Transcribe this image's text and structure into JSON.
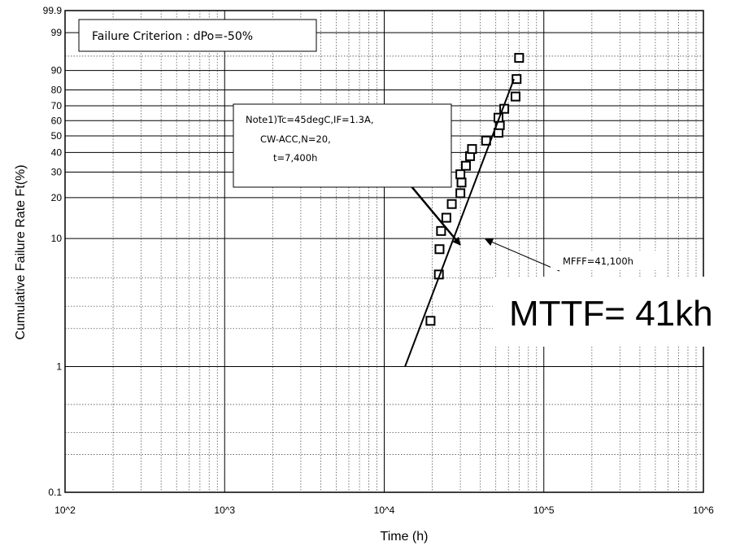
{
  "chart_data": {
    "type": "scatter",
    "title": "",
    "xlabel": "Time (h)",
    "ylabel": "Cumulative Failure Rate Ft(%)",
    "x_scale": "log",
    "y_scale": "weibull",
    "xlim": [
      100,
      1000000
    ],
    "ylim": [
      0.1,
      99.9
    ],
    "x_ticks": [
      {
        "value": 100,
        "label": "10^2"
      },
      {
        "value": 1000,
        "label": "10^3"
      },
      {
        "value": 10000,
        "label": "10^4"
      },
      {
        "value": 100000,
        "label": "10^5"
      },
      {
        "value": 1000000,
        "label": "10^6"
      }
    ],
    "y_ticks": [
      {
        "value": 0.1,
        "label": "0.1"
      },
      {
        "value": 1,
        "label": "1"
      },
      {
        "value": 10,
        "label": "10"
      },
      {
        "value": 20,
        "label": "20"
      },
      {
        "value": 30,
        "label": "30"
      },
      {
        "value": 40,
        "label": "40"
      },
      {
        "value": 50,
        "label": "50"
      },
      {
        "value": 60,
        "label": "60"
      },
      {
        "value": 70,
        "label": "70"
      },
      {
        "value": 80,
        "label": "80"
      },
      {
        "value": 90,
        "label": "90"
      },
      {
        "value": 99,
        "label": "99"
      },
      {
        "value": 99.9,
        "label": "99.9"
      }
    ],
    "grid": true,
    "series": [
      {
        "marker": "open-square",
        "points": [
          {
            "x": 19500,
            "y": 2.3
          },
          {
            "x": 22000,
            "y": 5.3
          },
          {
            "x": 22200,
            "y": 8.3
          },
          {
            "x": 22700,
            "y": 11.4
          },
          {
            "x": 24500,
            "y": 14.3
          },
          {
            "x": 26500,
            "y": 18
          },
          {
            "x": 30000,
            "y": 21.5
          },
          {
            "x": 30500,
            "y": 25.5
          },
          {
            "x": 30000,
            "y": 29
          },
          {
            "x": 32500,
            "y": 33
          },
          {
            "x": 34500,
            "y": 38
          },
          {
            "x": 35500,
            "y": 42
          },
          {
            "x": 43500,
            "y": 47
          },
          {
            "x": 52000,
            "y": 52
          },
          {
            "x": 53000,
            "y": 57
          },
          {
            "x": 52000,
            "y": 62
          },
          {
            "x": 56500,
            "y": 68
          },
          {
            "x": 66500,
            "y": 76
          },
          {
            "x": 67500,
            "y": 86
          },
          {
            "x": 70000,
            "y": 94.5
          }
        ]
      }
    ],
    "fit_line": {
      "points": [
        {
          "x": 13500,
          "y": 1
        },
        {
          "x": 65000,
          "y": 86
        }
      ]
    }
  },
  "annotations": {
    "criterion": "Failure Criterion : dPo=-50%",
    "note_lines": [
      "Note1)Tc=45degC,IF=1.3A,",
      "CW-ACC,N=20,",
      "t=7,400h"
    ],
    "mfff": "MFFF=41,100h",
    "mttf": "MTTF= 41kh"
  }
}
